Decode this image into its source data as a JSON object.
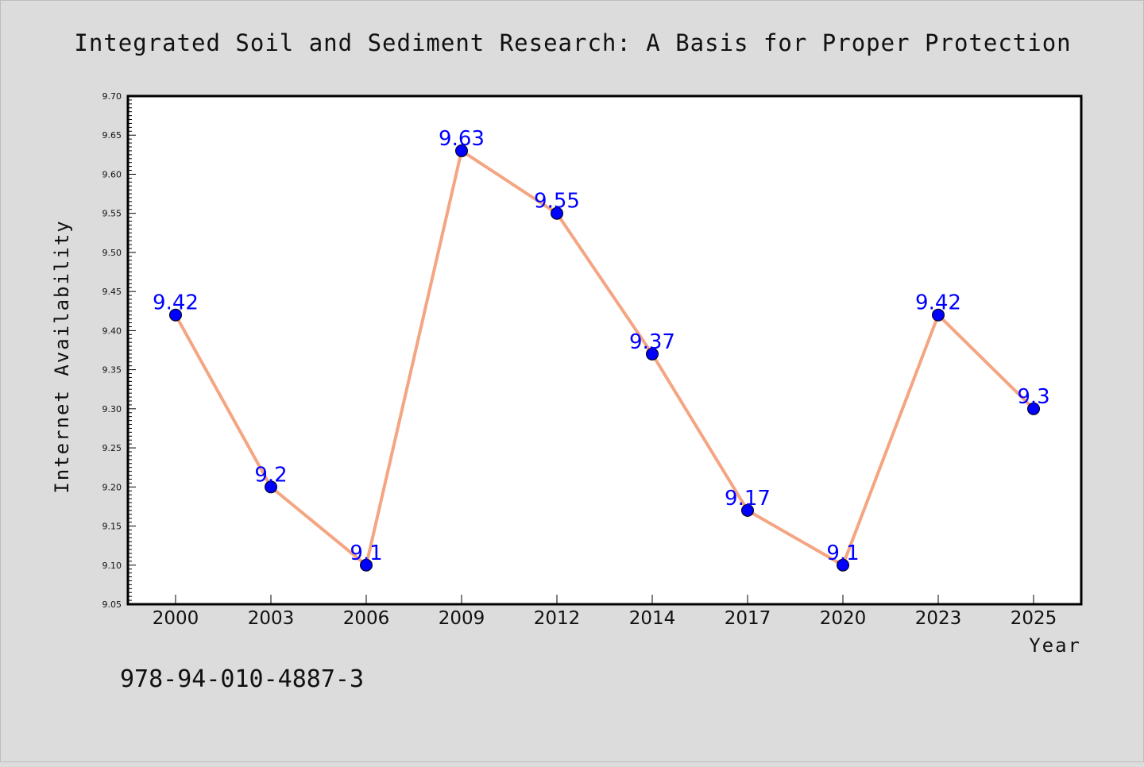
{
  "chart_data": {
    "type": "line",
    "title": "Integrated Soil and Sediment Research: A Basis for Proper Protection",
    "xlabel": "Year",
    "ylabel": "Internet Availability",
    "categories": [
      "2000",
      "2003",
      "2006",
      "2009",
      "2012",
      "2014",
      "2017",
      "2020",
      "2023",
      "2025"
    ],
    "series": [
      {
        "values": [
          9.42,
          9.2,
          9.1,
          9.63,
          9.55,
          9.37,
          9.17,
          9.1,
          9.42,
          9.3
        ]
      }
    ],
    "data_labels": [
      "9.42",
      "9.2",
      "9.1",
      "9.63",
      "9.55",
      "9.37",
      "9.17",
      "9.1",
      "9.42",
      "9.3"
    ],
    "ylim": [
      9.05,
      9.7
    ],
    "y_ticks": [
      "9.05",
      "9.10",
      "9.15",
      "9.20",
      "9.25",
      "9.30",
      "9.35",
      "9.40",
      "9.45",
      "9.50",
      "9.55",
      "9.60",
      "9.65",
      "9.70"
    ],
    "grid": false,
    "line_color": "#f4a582",
    "marker_color": "#0000ff",
    "label_color": "#0000ff"
  },
  "footer": {
    "code": "978-94-010-4887-3"
  }
}
